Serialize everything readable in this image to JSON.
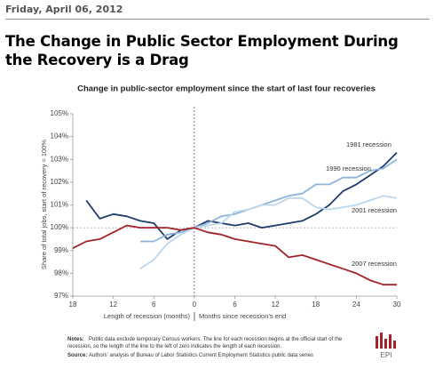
{
  "post": {
    "date": "Friday, April 06, 2012",
    "heading": "The Change in Public Sector Employment During the Recovery is a Drag"
  },
  "chart_data": {
    "type": "line",
    "title": "Change in public-sector employment since the start of last four recoveries",
    "y_label": "Share of total jobs, start of recovery = 100%",
    "x_label_left": "Length of recession (months)",
    "x_label_right": "Months since recession's end",
    "x": [
      -18,
      -16,
      -14,
      -12,
      -10,
      -8,
      -6,
      -4,
      -2,
      0,
      2,
      4,
      6,
      8,
      10,
      12,
      14,
      16,
      18,
      20,
      22,
      24,
      26,
      28,
      30
    ],
    "series": [
      {
        "name": "1981 recession",
        "color": "#1f3b6e",
        "values": [
          null,
          101.2,
          100.4,
          100.6,
          100.5,
          100.3,
          100.2,
          99.5,
          99.9,
          100,
          100.3,
          100.2,
          100.1,
          100.2,
          100.0,
          100.1,
          100.2,
          100.3,
          100.6,
          101.0,
          101.6,
          101.9,
          102.3,
          102.7,
          103.3
        ]
      },
      {
        "name": "1990 recession",
        "color": "#8fb4da",
        "values": [
          null,
          null,
          null,
          null,
          null,
          99.4,
          99.4,
          99.7,
          99.8,
          100,
          100.2,
          100.5,
          100.6,
          100.8,
          101.0,
          101.2,
          101.4,
          101.5,
          101.9,
          101.9,
          102.2,
          102.2,
          102.5,
          102.6,
          103.0
        ]
      },
      {
        "name": "2001 recession",
        "color": "#bcd6ec",
        "values": [
          null,
          null,
          null,
          null,
          null,
          98.2,
          98.6,
          99.3,
          99.7,
          100,
          100.1,
          100.2,
          100.7,
          100.8,
          101.0,
          101.0,
          101.3,
          101.3,
          100.9,
          100.8,
          100.9,
          101.0,
          101.2,
          101.4,
          101.3
        ]
      },
      {
        "name": "2007 recession",
        "color": "#a3232a",
        "values": [
          99.1,
          99.4,
          99.5,
          99.8,
          100.1,
          100.0,
          100.0,
          100.0,
          99.9,
          100,
          99.8,
          99.7,
          99.5,
          99.4,
          99.3,
          99.2,
          98.7,
          98.8,
          98.6,
          98.4,
          98.2,
          98.0,
          97.7,
          97.5,
          97.5
        ]
      }
    ],
    "xlim": [
      -18,
      30
    ],
    "ylim": [
      97,
      105
    ],
    "xticks": [
      {
        "value": -18,
        "label": "18"
      },
      {
        "value": -12,
        "label": "12"
      },
      {
        "value": -6,
        "label": "6"
      },
      0,
      6,
      12,
      18,
      24,
      30
    ],
    "yticks": [
      {
        "value": 97,
        "label": "97%"
      },
      {
        "value": 98,
        "label": "98%"
      },
      {
        "value": 99,
        "label": "99%"
      },
      {
        "value": 100,
        "label": "100%"
      },
      {
        "value": 101,
        "label": "101%"
      },
      {
        "value": 102,
        "label": "102%"
      },
      {
        "value": 103,
        "label": "103%"
      },
      {
        "value": 104,
        "label": "104%"
      },
      {
        "value": 105,
        "label": "105%"
      }
    ],
    "hline": 100,
    "vline": 0,
    "notes_label": "Notes:",
    "notes": "Public data exclude temporary Census workers. The line for each recession begins at the official start of the recession, so the length of the line to the left of zero indicates the length of each recession.",
    "source_label": "Source:",
    "source": "Authors' analysis of Bureau of Labor Statistics Current Employment Statistics public data series",
    "logo": "EPI"
  }
}
